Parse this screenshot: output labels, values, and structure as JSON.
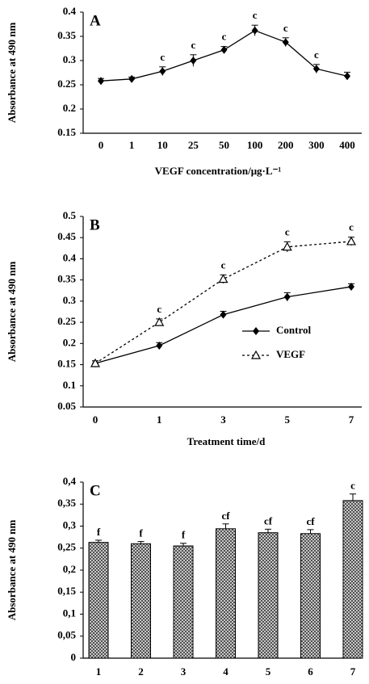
{
  "chart_data": [
    {
      "type": "line",
      "title": "A",
      "ylabel": "Absorbance at 490 nm",
      "xlabel": "VEGF concentration/μg·L⁻¹",
      "categories": [
        "0",
        "1",
        "10",
        "25",
        "50",
        "100",
        "200",
        "300",
        "400"
      ],
      "series": [
        {
          "color": "#000000",
          "marker": "diamond",
          "dashed": false,
          "values": [
            0.258,
            0.262,
            0.278,
            0.3,
            0.322,
            0.362,
            0.338,
            0.283,
            0.268
          ],
          "errors": [
            0.005,
            0.004,
            0.009,
            0.012,
            0.007,
            0.011,
            0.009,
            0.009,
            0.008
          ],
          "annotations": [
            null,
            null,
            "c",
            "c",
            "c",
            "c",
            "c",
            "c",
            null
          ]
        }
      ],
      "ylim": [
        0.15,
        0.4
      ],
      "yticks": [
        0.15,
        0.2,
        0.25,
        0.3,
        0.35,
        0.4
      ]
    },
    {
      "type": "line",
      "title": "B",
      "ylabel": "Absorbance at 490 nm",
      "xlabel": "Treatment time/d",
      "categories": [
        "0",
        "1",
        "3",
        "5",
        "7"
      ],
      "series": [
        {
          "name": "Control",
          "color": "#000000",
          "marker": "diamond",
          "dashed": false,
          "values": [
            0.153,
            0.195,
            0.268,
            0.31,
            0.334
          ],
          "errors": [
            0.006,
            0.007,
            0.008,
            0.01,
            0.007
          ],
          "annotations": [
            null,
            null,
            null,
            null,
            null
          ]
        },
        {
          "name": "VEGF",
          "color": "#000000",
          "marker": "triangle",
          "dashed": true,
          "values": [
            0.153,
            0.25,
            0.352,
            0.428,
            0.441
          ],
          "errors": [
            0.006,
            0.008,
            0.01,
            0.012,
            0.01
          ],
          "annotations": [
            null,
            "c",
            "c",
            "c",
            "c"
          ]
        }
      ],
      "legend": "lower right",
      "ylim": [
        0.05,
        0.5
      ],
      "yticks": [
        0.05,
        0.1,
        0.15,
        0.2,
        0.25,
        0.3,
        0.35,
        0.4,
        0.45,
        0.5
      ]
    },
    {
      "type": "bar",
      "title": "C",
      "ylabel": "Absorbance at 490 nm",
      "categories": [
        "1",
        "2",
        "3",
        "4",
        "5",
        "6",
        "7"
      ],
      "values": [
        0.263,
        0.26,
        0.255,
        0.294,
        0.285,
        0.283,
        0.358
      ],
      "errors": [
        0.005,
        0.005,
        0.006,
        0.011,
        0.008,
        0.009,
        0.015
      ],
      "annotations": [
        "f",
        "f",
        "f",
        "cf",
        "cf",
        "cf",
        "c"
      ],
      "color": "#000000",
      "pattern": "crosshatch",
      "ylim": [
        0,
        0.4
      ],
      "yticks": [
        {
          "value": 0,
          "label": "0"
        },
        {
          "value": 0.05,
          "label": "0,05"
        },
        {
          "value": 0.1,
          "label": "0,1"
        },
        {
          "value": 0.15,
          "label": "0,15"
        },
        {
          "value": 0.2,
          "label": "0,2"
        },
        {
          "value": 0.25,
          "label": "0,25"
        },
        {
          "value": 0.3,
          "label": "0,3"
        },
        {
          "value": 0.35,
          "label": "0,35"
        },
        {
          "value": 0.4,
          "label": "0,4"
        }
      ]
    }
  ]
}
